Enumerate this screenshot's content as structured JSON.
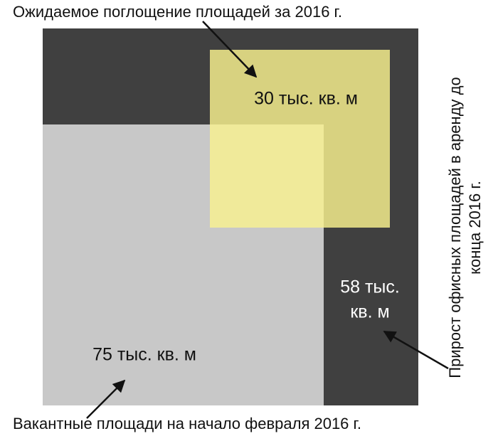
{
  "title": "Ожидаемое поглощение площадей за 2016 г.",
  "bottom_caption": "Вакантные площади на начало февраля 2016 г.",
  "right_caption": [
    "Прирост офисных площадей в аренду до",
    "конца 2016 г."
  ],
  "labels": {
    "absorption": "30 тыс. кв. м",
    "new_supply": [
      "58 тыс.",
      "кв. м"
    ],
    "vacant": "75 тыс. кв. м"
  }
}
